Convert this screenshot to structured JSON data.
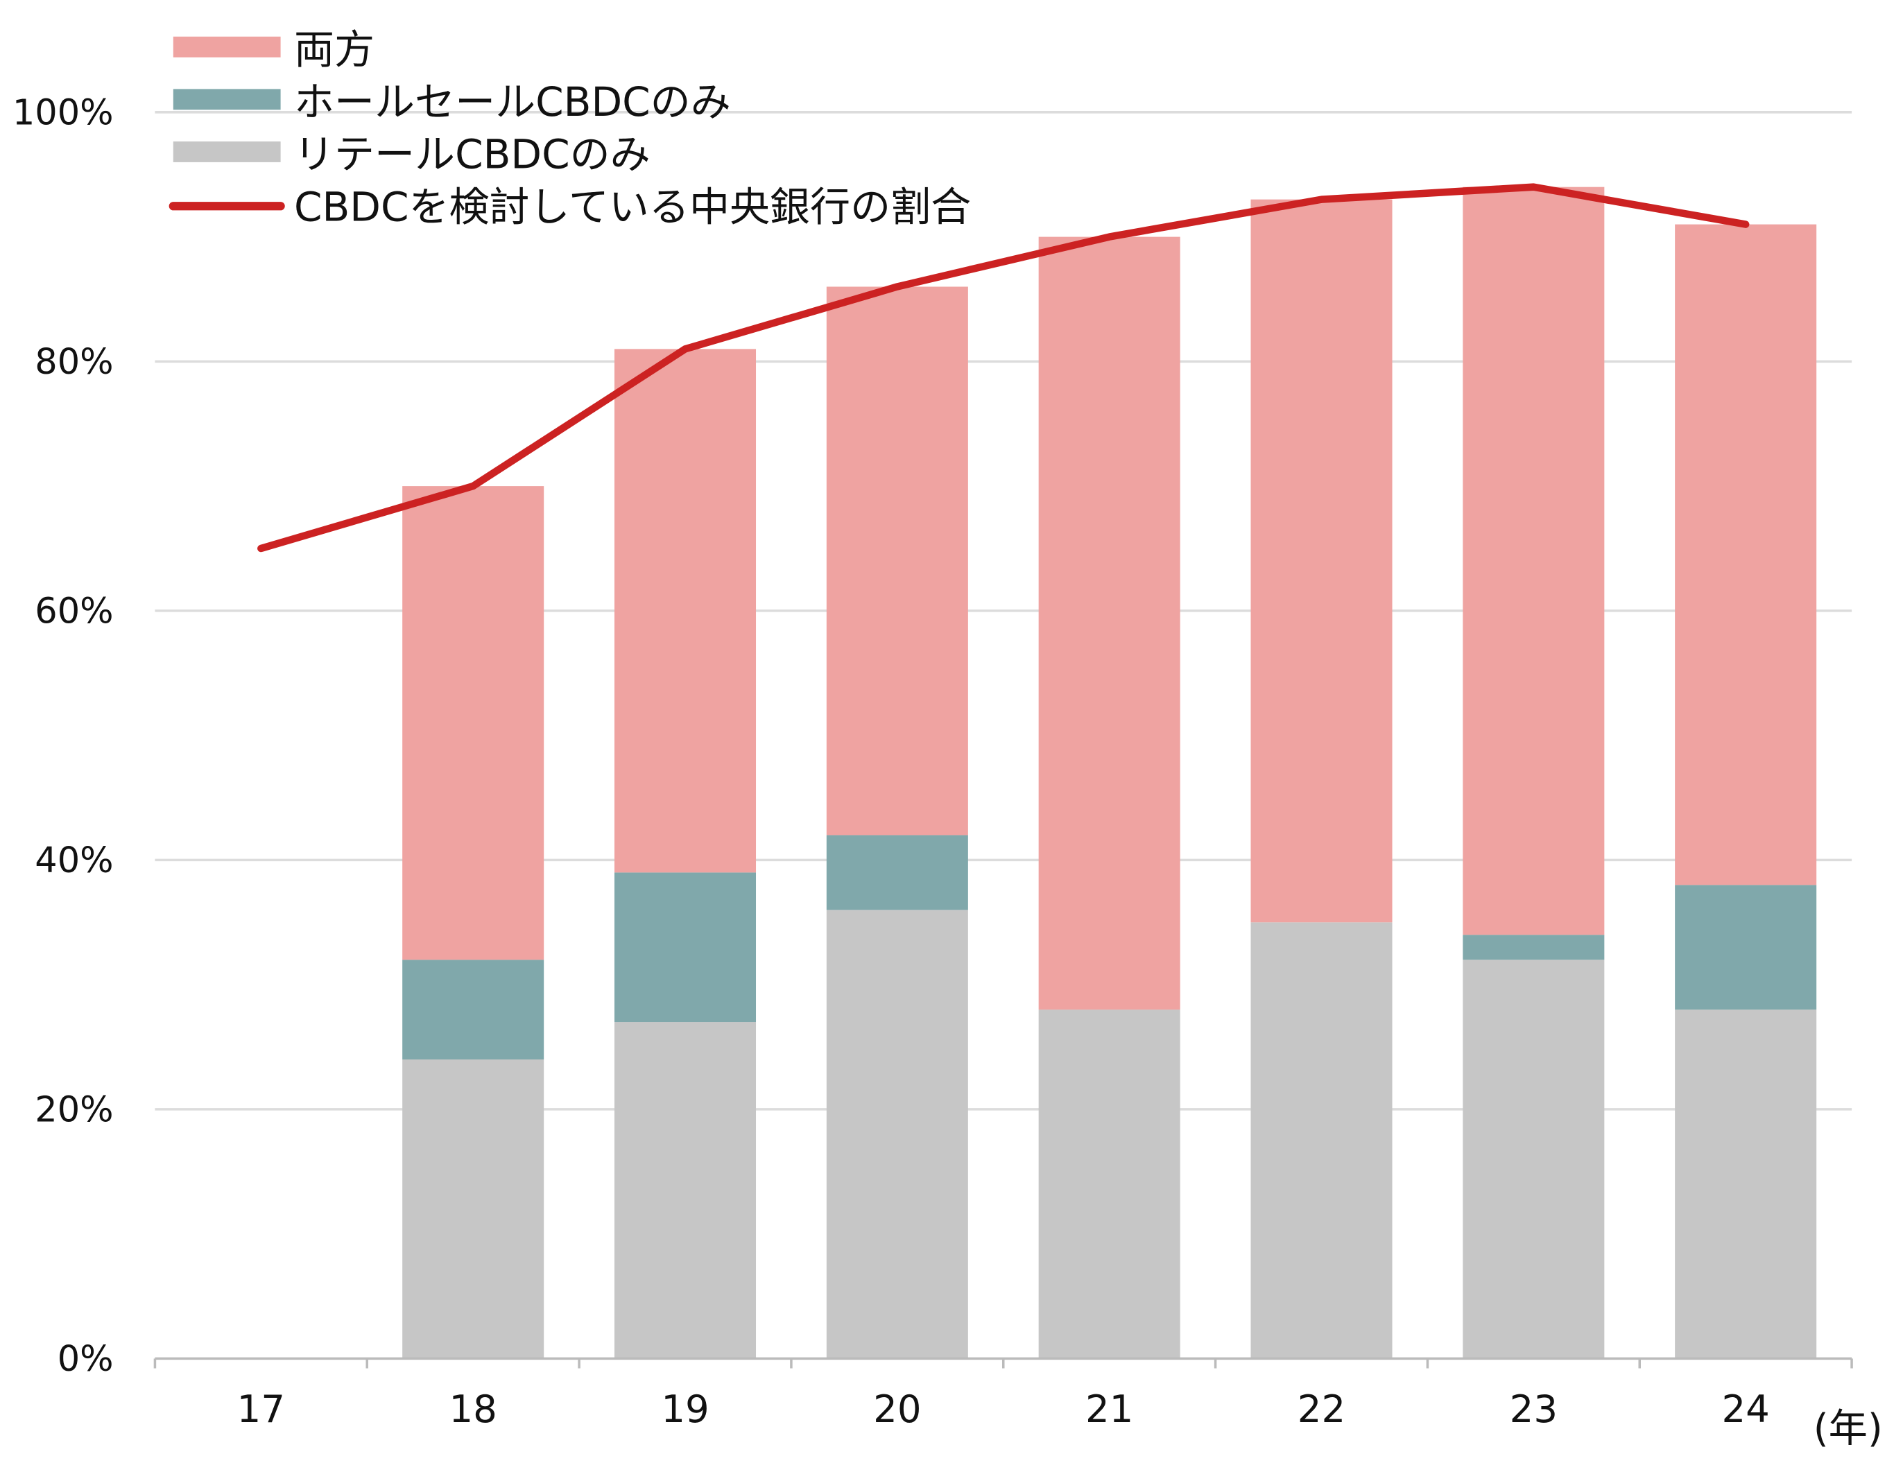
{
  "chart_data": {
    "type": "bar",
    "stacked": true,
    "categories": [
      "17",
      "18",
      "19",
      "20",
      "21",
      "22",
      "23",
      "24"
    ],
    "x_unit_label": "(年)",
    "ylim": [
      0,
      100
    ],
    "yticks": [
      "0%",
      "20%",
      "40%",
      "60%",
      "80%",
      "100%"
    ],
    "ytick_values": [
      0,
      20,
      40,
      60,
      80,
      100
    ],
    "grid": true,
    "legend_position": "top-left",
    "series": [
      {
        "name": "リテールCBDCのみ",
        "kind": "bar",
        "color": "#c6c6c6",
        "values": [
          null,
          24,
          27,
          36,
          28,
          35,
          32,
          28
        ]
      },
      {
        "name": "ホールセールCBDCのみ",
        "kind": "bar",
        "color": "#80a8ab",
        "values": [
          null,
          8,
          12,
          6,
          0,
          0,
          2,
          10
        ]
      },
      {
        "name": "両方",
        "kind": "bar",
        "color": "#efa3a1",
        "values": [
          null,
          38,
          42,
          44,
          62,
          58,
          60,
          53
        ]
      },
      {
        "name": "CBDCを検討している中央銀行の割合",
        "kind": "line",
        "color": "#cc2222",
        "values": [
          65,
          70,
          81,
          86,
          90,
          93,
          94,
          91
        ]
      }
    ],
    "legend_order": [
      2,
      1,
      0,
      3
    ]
  }
}
